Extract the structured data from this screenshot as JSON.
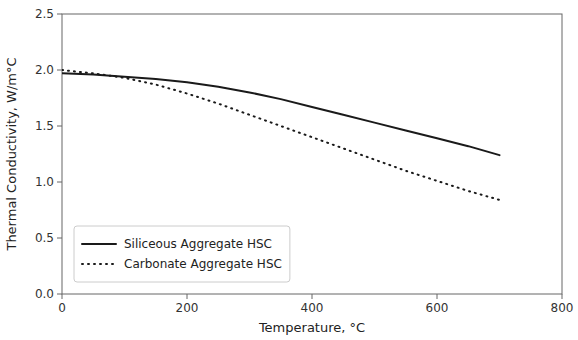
{
  "chart_data": {
    "type": "line",
    "xlabel": "Temperature, °C",
    "ylabel": "Thermal Conductivity, W/m°C",
    "xlim": [
      0,
      800
    ],
    "ylim": [
      0.0,
      2.5
    ],
    "xticks": [
      0,
      200,
      400,
      600,
      800
    ],
    "yticks": [
      {
        "value": 0.0,
        "label": "0.0"
      },
      0.5,
      {
        "value": 1.0,
        "label": "1.0"
      },
      1.5,
      {
        "value": 2.0,
        "label": "2.0"
      },
      2.5
    ],
    "x": [
      0,
      50,
      100,
      150,
      200,
      250,
      300,
      350,
      400,
      450,
      500,
      550,
      600,
      650,
      700
    ],
    "series": [
      {
        "name": "Siliceous Aggregate HSC",
        "color": "#1a1a1a",
        "line_style": "solid",
        "values": [
          1.97,
          1.96,
          1.94,
          1.92,
          1.89,
          1.85,
          1.8,
          1.74,
          1.67,
          1.6,
          1.53,
          1.46,
          1.39,
          1.32,
          1.24
        ]
      },
      {
        "name": "Carbonate Aggregate HSC",
        "color": "#1a1a1a",
        "line_style": "dotted",
        "values": [
          2.0,
          1.97,
          1.93,
          1.87,
          1.79,
          1.7,
          1.6,
          1.5,
          1.4,
          1.3,
          1.2,
          1.1,
          1.01,
          0.92,
          0.84
        ]
      }
    ],
    "grid": false,
    "legend": "lower left"
  }
}
